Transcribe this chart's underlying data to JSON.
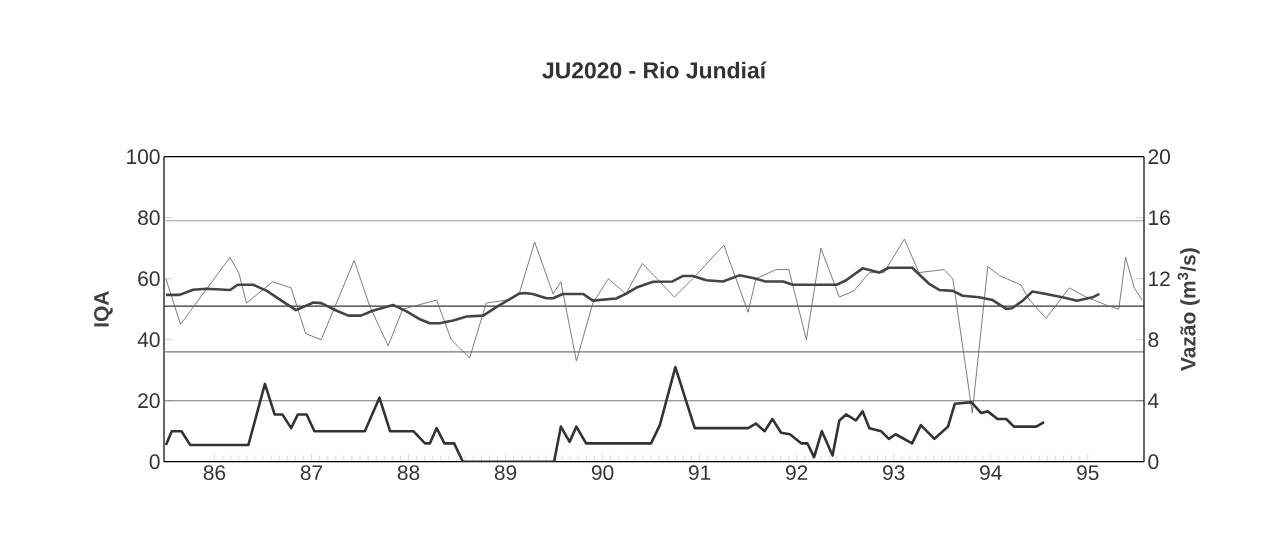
{
  "chart_data": {
    "type": "line",
    "title": "JU2020 - Rio Jundiaí",
    "ylabel": "IQA",
    "y2label": "Vazão (m$^{3}$/s)",
    "xlim": [
      85.98,
      96.08
    ],
    "xticks": [
      {
        "value": 86.5,
        "label": "86"
      },
      {
        "value": 87.5,
        "label": "87"
      },
      {
        "value": 88.5,
        "label": "88"
      },
      {
        "value": 89.5,
        "label": "89"
      },
      {
        "value": 90.5,
        "label": "90"
      },
      {
        "value": 91.5,
        "label": "91"
      },
      {
        "value": 92.5,
        "label": "92"
      },
      {
        "value": 93.5,
        "label": "93"
      },
      {
        "value": 94.5,
        "label": "94"
      },
      {
        "value": 95.5,
        "label": "95"
      }
    ],
    "ylim": [
      0,
      100
    ],
    "yticks": [
      0,
      20,
      40,
      60,
      80,
      100
    ],
    "y2lim": [
      0,
      20
    ],
    "y2ticks": [
      0,
      4,
      8,
      12,
      16,
      20
    ],
    "marker": "none",
    "line_style": "solid",
    "ref_lines": [
      {
        "axis": "y",
        "value": 79,
        "color": "#9a9a9a"
      },
      {
        "axis": "y",
        "value": 51,
        "color": "#333333"
      },
      {
        "axis": "y",
        "value": 36,
        "color": "#777777"
      },
      {
        "axis": "y",
        "value": 20,
        "color": "#777777"
      }
    ],
    "series": [
      {
        "color": "#6e6e6e",
        "x": [
          86.0,
          86.15,
          86.66,
          86.75,
          86.83,
          87.1,
          87.29,
          87.44,
          87.6,
          87.94,
          88.1,
          88.29,
          88.44,
          88.79,
          88.94,
          89.13,
          89.3,
          89.51,
          89.64,
          89.8,
          89.99,
          90.07,
          90.23,
          90.4,
          90.56,
          90.74,
          90.91,
          91.0,
          91.24,
          91.43,
          91.75,
          92.0,
          92.08,
          92.29,
          92.42,
          92.6,
          92.75,
          92.94,
          93.09,
          93.25,
          93.4,
          93.61,
          93.76,
          94.02,
          94.11,
          94.31,
          94.47,
          94.59,
          94.81,
          94.9,
          95.07,
          95.31,
          95.48,
          95.72,
          95.82,
          95.89,
          95.98,
          96.06
        ],
        "values": [
          60,
          45,
          67,
          62,
          52,
          59,
          57,
          42,
          40,
          66,
          51,
          38,
          50,
          53,
          40,
          34,
          52,
          53,
          55,
          72,
          55,
          59,
          33,
          52,
          60,
          55,
          65,
          62,
          54,
          60,
          71,
          49,
          60,
          63,
          63,
          40,
          70,
          54,
          56,
          62,
          62,
          73,
          62,
          63,
          60,
          16,
          64,
          61,
          58,
          53,
          47,
          57,
          54,
          51,
          50,
          67,
          57,
          53
        ]
      },
      {
        "color": "#444444",
        "x": [
          86.0,
          86.14,
          86.28,
          86.42,
          86.66,
          86.74,
          86.9,
          87.04,
          87.21,
          87.34,
          87.52,
          87.6,
          87.76,
          87.88,
          88.01,
          88.13,
          88.34,
          88.48,
          88.61,
          88.72,
          88.82,
          88.96,
          89.1,
          89.27,
          89.4,
          89.64,
          89.7,
          89.78,
          89.92,
          89.99,
          90.09,
          90.3,
          90.4,
          90.64,
          90.74,
          90.85,
          91.02,
          91.22,
          91.33,
          91.43,
          91.57,
          91.74,
          91.91,
          92.05,
          92.18,
          92.36,
          92.46,
          92.91,
          93.01,
          93.18,
          93.35,
          93.45,
          93.69,
          93.87,
          93.97,
          94.11,
          94.21,
          94.38,
          94.52,
          94.66,
          94.72,
          94.83,
          94.93,
          95.07,
          95.24,
          95.39,
          95.55,
          95.62
        ],
        "values": [
          54.7,
          54.7,
          56.4,
          56.7,
          56.3,
          58,
          58,
          56,
          52.4,
          49.7,
          52.2,
          52,
          49.5,
          47.9,
          47.9,
          49.5,
          51.4,
          49.3,
          46.8,
          45.4,
          45.4,
          46.3,
          47.6,
          47.9,
          50.6,
          55.1,
          55.3,
          55,
          53.6,
          53.6,
          55,
          55,
          52.8,
          53.5,
          55,
          57.1,
          59,
          59.1,
          60.9,
          60.9,
          59.5,
          59.1,
          61.1,
          60.2,
          59.1,
          59.1,
          58,
          58,
          59.5,
          63.4,
          62,
          63.6,
          63.6,
          58.2,
          56.3,
          56,
          54.4,
          53.9,
          53,
          50.1,
          50.3,
          52.8,
          55.8,
          55,
          53.9,
          52.8,
          53.9,
          55
        ]
      },
      {
        "color": "#333333",
        "axis": "y2",
        "x": [
          86.0,
          86.06,
          86.16,
          86.25,
          86.85,
          87.02,
          87.12,
          87.2,
          87.29,
          87.36,
          87.45,
          87.53,
          88.05,
          88.2,
          88.31,
          88.55,
          88.67,
          88.72,
          88.79,
          88.87,
          88.97,
          89.06,
          90.0,
          90.07,
          90.16,
          90.23,
          90.33,
          91.0,
          91.09,
          91.25,
          91.45,
          92.0,
          92.08,
          92.17,
          92.25,
          92.34,
          92.43,
          92.55,
          92.61,
          92.68,
          92.76,
          92.87,
          92.94,
          93.01,
          93.11,
          93.18,
          93.25,
          93.37,
          93.45,
          93.52,
          93.69,
          93.78,
          93.92,
          94.06,
          94.13,
          94.3,
          94.4,
          94.47,
          94.57,
          94.66,
          94.74,
          94.86,
          94.97,
          95.05
        ],
        "values": [
          1.1,
          2.0,
          2.0,
          1.1,
          1.1,
          5.1,
          3.1,
          3.1,
          2.2,
          3.1,
          3.1,
          2.0,
          2.0,
          4.2,
          2.0,
          2.0,
          1.2,
          1.2,
          2.2,
          1.2,
          1.2,
          0,
          0,
          2.3,
          1.3,
          2.3,
          1.2,
          1.2,
          2.4,
          6.2,
          2.2,
          2.2,
          2.5,
          2.0,
          2.8,
          1.9,
          1.8,
          1.2,
          1.2,
          0.3,
          2.0,
          0.4,
          2.7,
          3.1,
          2.7,
          3.3,
          2.2,
          2.0,
          1.5,
          1.8,
          1.2,
          2.4,
          1.5,
          2.3,
          3.8,
          3.9,
          3.2,
          3.3,
          2.8,
          2.8,
          2.3,
          2.3,
          2.3,
          2.6
        ]
      }
    ]
  }
}
